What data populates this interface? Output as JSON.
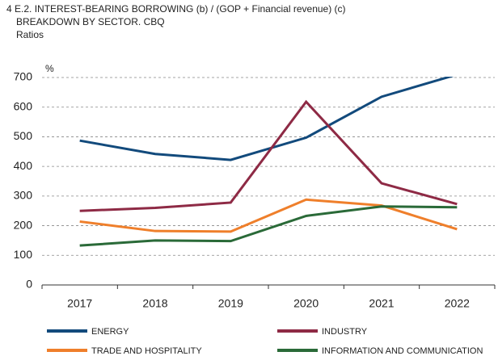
{
  "chart_data": {
    "type": "line",
    "title": "4 E.2. INTEREST-BEARING BORROWING (b) / (GOP + Financial revenue) (c)",
    "subtitle": "BREAKDOWN BY SECTOR. CBQ",
    "units": "Ratios",
    "y_label": "%",
    "categories": [
      "2017",
      "2018",
      "2019",
      "2020",
      "2021",
      "2022"
    ],
    "series": [
      {
        "name": "ENERGY",
        "color": "#124a7c",
        "values": [
          487,
          442,
          422,
          497,
          635,
          710
        ]
      },
      {
        "name": "INDUSTRY",
        "color": "#8e2a45",
        "values": [
          250,
          260,
          278,
          618,
          343,
          273
        ]
      },
      {
        "name": "TRADE AND HOSPITALITY",
        "color": "#ef7f2b",
        "values": [
          214,
          182,
          180,
          288,
          268,
          188
        ]
      },
      {
        "name": "INFORMATION AND COMMUNICATION",
        "color": "#2a6a38",
        "values": [
          133,
          150,
          148,
          233,
          265,
          262
        ]
      }
    ],
    "ylim": [
      0,
      700
    ],
    "yticks": [
      0,
      100,
      200,
      300,
      400,
      500,
      600,
      700
    ],
    "grid": true
  }
}
